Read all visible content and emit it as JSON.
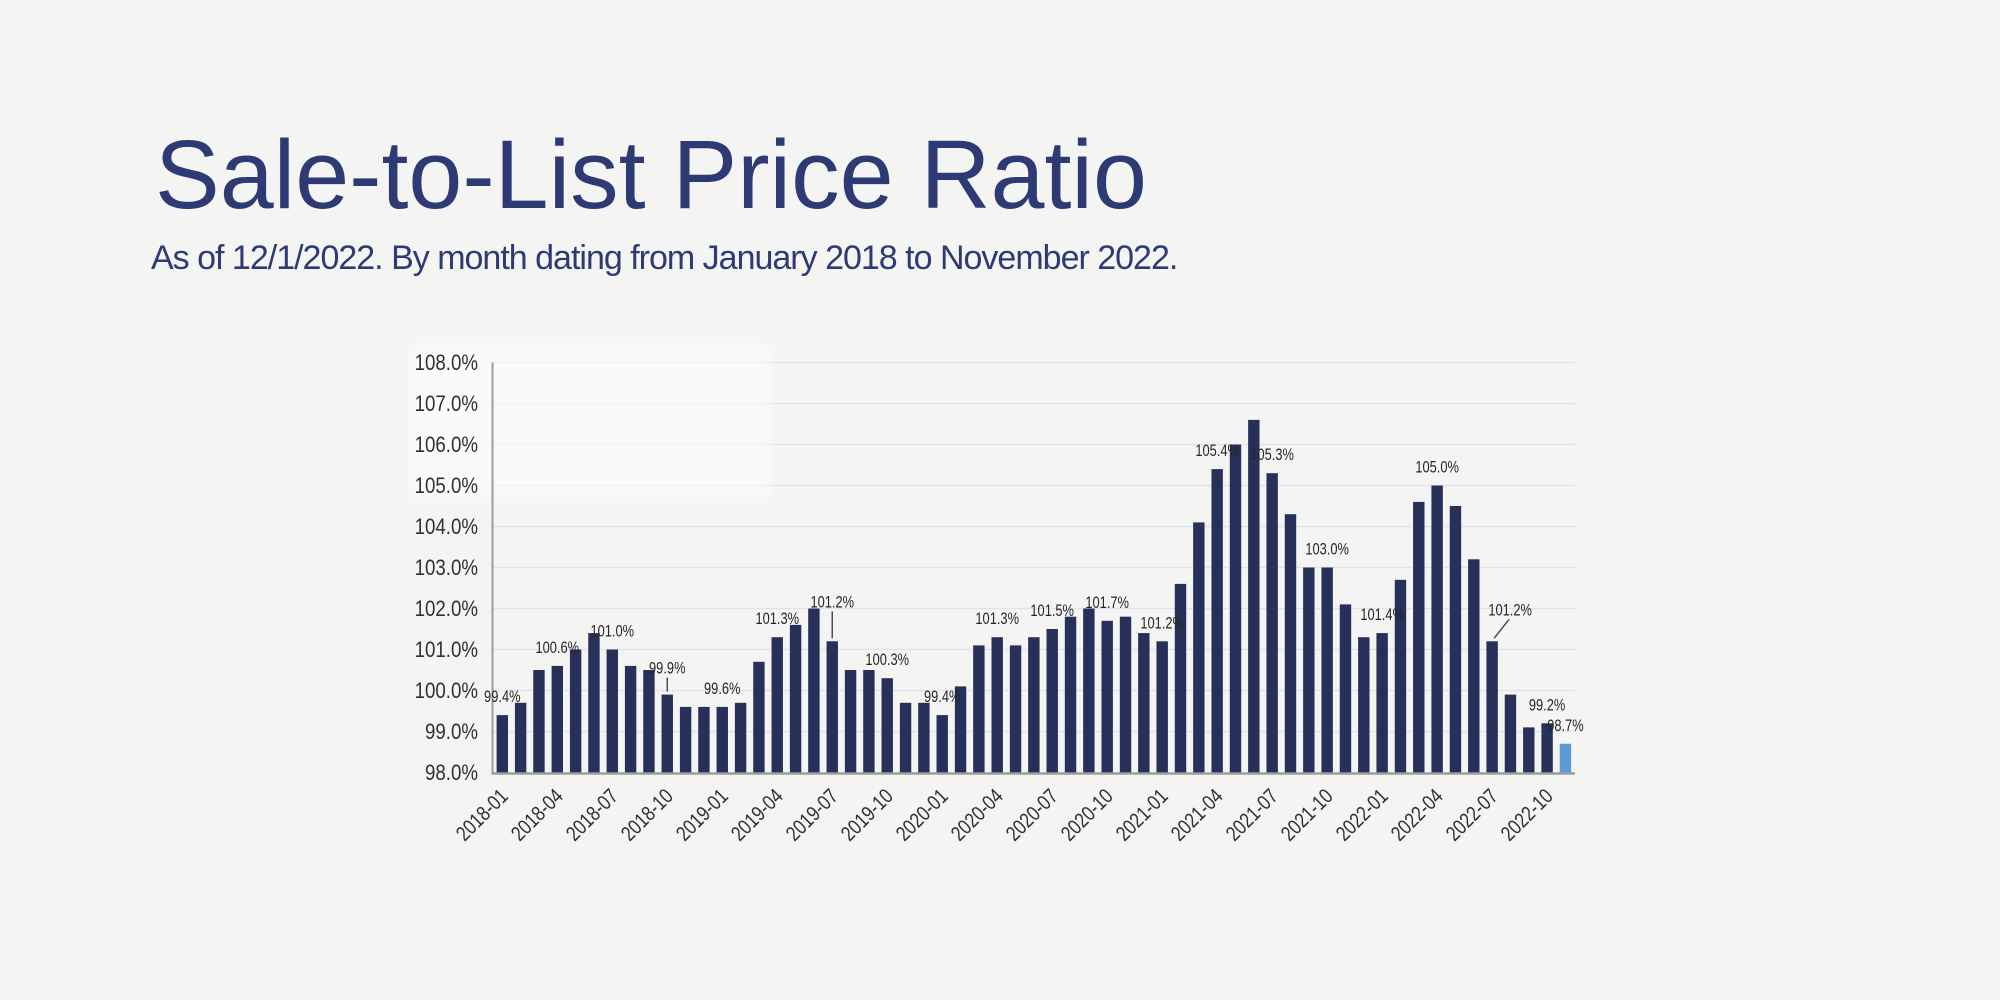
{
  "page": {
    "background": "#f4f4f2"
  },
  "header": {
    "title": "Sale-to-List Price Ratio",
    "subtitle": "As of 12/1/2022. By month dating from January 2018 to November 2022.",
    "text_color": "#2d3a74"
  },
  "chart_data": {
    "type": "bar",
    "x": [
      "2018-01",
      "2018-02",
      "2018-03",
      "2018-04",
      "2018-05",
      "2018-06",
      "2018-07",
      "2018-08",
      "2018-09",
      "2018-10",
      "2018-11",
      "2018-12",
      "2019-01",
      "2019-02",
      "2019-03",
      "2019-04",
      "2019-05",
      "2019-06",
      "2019-07",
      "2019-08",
      "2019-09",
      "2019-10",
      "2019-11",
      "2019-12",
      "2020-01",
      "2020-02",
      "2020-03",
      "2020-04",
      "2020-05",
      "2020-06",
      "2020-07",
      "2020-08",
      "2020-09",
      "2020-10",
      "2020-11",
      "2020-12",
      "2021-01",
      "2021-02",
      "2021-03",
      "2021-04",
      "2021-05",
      "2021-06",
      "2021-07",
      "2021-08",
      "2021-09",
      "2021-10",
      "2021-11",
      "2021-12",
      "2022-01",
      "2022-02",
      "2022-03",
      "2022-04",
      "2022-05",
      "2022-06",
      "2022-07",
      "2022-08",
      "2022-09",
      "2022-10",
      "2022-11"
    ],
    "values": [
      99.4,
      99.7,
      100.5,
      100.6,
      101.0,
      101.4,
      101.0,
      100.6,
      100.5,
      99.9,
      99.6,
      99.6,
      99.6,
      99.7,
      100.7,
      101.3,
      101.6,
      102.0,
      101.2,
      100.5,
      100.5,
      100.3,
      99.7,
      99.7,
      99.4,
      100.1,
      101.1,
      101.3,
      101.1,
      101.3,
      101.5,
      101.8,
      102.0,
      101.7,
      101.8,
      101.4,
      101.2,
      102.6,
      104.1,
      105.4,
      106.0,
      106.6,
      105.3,
      104.3,
      103.0,
      103.0,
      102.1,
      101.3,
      101.4,
      102.7,
      104.6,
      105.0,
      104.5,
      103.2,
      101.2,
      99.9,
      99.1,
      99.2,
      98.7
    ],
    "ylim": [
      98,
      108
    ],
    "ytick_step": 1,
    "ytick_labels": [
      "98.0%",
      "99.0%",
      "100.0%",
      "101.0%",
      "102.0%",
      "103.0%",
      "104.0%",
      "105.0%",
      "106.0%",
      "107.0%",
      "108.0%"
    ],
    "xtick_labels": [
      "2018-01",
      "2018-04",
      "2018-07",
      "2018-10",
      "2019-01",
      "2019-04",
      "2019-07",
      "2019-10",
      "2020-01",
      "2020-04",
      "2020-07",
      "2020-10",
      "2021-01",
      "2021-04",
      "2021-07",
      "2021-10",
      "2022-01",
      "2022-04",
      "2022-07",
      "2022-10"
    ],
    "grid": true,
    "legend": false,
    "bar_color": "#263059",
    "highlight_last_bar_color": "#5b9ad5",
    "grid_color": "#e0e3ea",
    "axis_color": "#9c9c9c",
    "axis_text_color": "#303030",
    "label_text_color": "#262626",
    "annotations": [
      {
        "month": "2018-01",
        "label": "99.4%",
        "leader": "none"
      },
      {
        "month": "2018-04",
        "label": "100.6%",
        "leader": "none"
      },
      {
        "month": "2018-07",
        "label": "101.0%",
        "leader": "none"
      },
      {
        "month": "2018-10",
        "label": "99.9%",
        "leader": "vertical",
        "dy": 8
      },
      {
        "month": "2019-01",
        "label": "99.6%",
        "leader": "none"
      },
      {
        "month": "2019-04",
        "label": "101.3%",
        "leader": "none"
      },
      {
        "month": "2019-07",
        "label": "101.2%",
        "leader": "vertical",
        "dy": 21
      },
      {
        "month": "2019-10",
        "label": "100.3%",
        "leader": "none"
      },
      {
        "month": "2020-01",
        "label": "99.4%",
        "leader": "none"
      },
      {
        "month": "2020-04",
        "label": "101.3%",
        "leader": "none"
      },
      {
        "month": "2020-07",
        "label": "101.5%",
        "leader": "none"
      },
      {
        "month": "2020-10",
        "label": "101.7%",
        "leader": "none"
      },
      {
        "month": "2021-01",
        "label": "101.2%",
        "leader": "none"
      },
      {
        "month": "2021-04",
        "label": "105.4%",
        "leader": "none"
      },
      {
        "month": "2021-07",
        "label": "105.3%",
        "leader": "none"
      },
      {
        "month": "2021-10",
        "label": "103.0%",
        "leader": "none"
      },
      {
        "month": "2022-01",
        "label": "101.4%",
        "leader": "none"
      },
      {
        "month": "2022-04",
        "label": "105.0%",
        "leader": "none"
      },
      {
        "month": "2022-07",
        "label": "101.2%",
        "leader": "diagonal",
        "dx": 18,
        "dy": 13
      },
      {
        "month": "2022-10",
        "label": "99.2%",
        "leader": "none"
      },
      {
        "month": "2022-11",
        "label": "98.7%",
        "leader": "none"
      }
    ]
  }
}
